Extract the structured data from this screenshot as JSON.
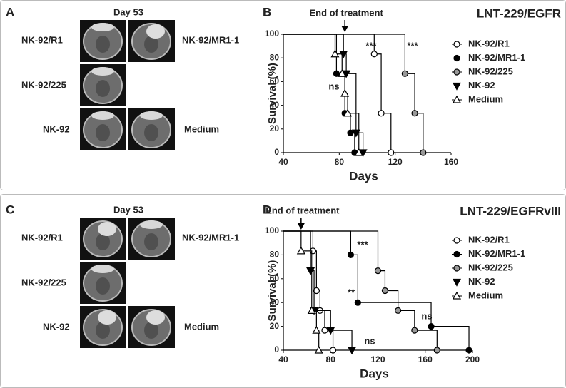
{
  "panels": [
    {
      "label": "A",
      "day": "Day 53",
      "names": [
        "NK-92/R1",
        "NK-92/MR1-1",
        "NK-92/225",
        "NK-92",
        "Medium"
      ]
    },
    {
      "label": "C",
      "day": "Day 53",
      "names": [
        "NK-92/R1",
        "NK-92/MR1-1",
        "NK-92/225",
        "NK-92",
        "Medium"
      ]
    }
  ],
  "chart_data": [
    {
      "type": "line",
      "label": "B",
      "title": "LNT-229/EGFR",
      "annotation": "End of treatment",
      "annotation_x": 84,
      "x_label": "Days",
      "y_label": "Survival  (%)",
      "xlim": [
        40,
        160
      ],
      "xticks": [
        40,
        80,
        120,
        160
      ],
      "ylim": [
        0,
        100
      ],
      "yticks": [
        0,
        20,
        40,
        60,
        80,
        100
      ],
      "marks": [
        "***",
        "***",
        "ns"
      ],
      "series": [
        {
          "name": "NK-92/R1",
          "color": "#ffffff",
          "marker": "circle",
          "x": [
            105,
            110,
            117
          ],
          "values": [
            83.3,
            33.3,
            0
          ]
        },
        {
          "name": "NK-92/MR1-1",
          "color": "#000000",
          "marker": "circle",
          "x": [
            78,
            84,
            88,
            91
          ],
          "values": [
            66.7,
            33.3,
            16.7,
            0
          ]
        },
        {
          "name": "NK-92/225",
          "color": "#999999",
          "marker": "circle",
          "x": [
            127,
            134,
            140
          ],
          "values": [
            66.7,
            33.3,
            0
          ]
        },
        {
          "name": "NK-92",
          "color": "#000000",
          "marker": "triangle-down",
          "x": [
            83,
            85,
            92,
            97
          ],
          "values": [
            83.3,
            66.7,
            16.7,
            0
          ]
        },
        {
          "name": "Medium",
          "color": "#ffffff",
          "marker": "triangle-up",
          "x": [
            77,
            82,
            84,
            86,
            94
          ],
          "values": [
            83.3,
            66.7,
            50,
            33.3,
            0
          ]
        }
      ]
    },
    {
      "type": "line",
      "label": "D",
      "title": "LNT-229/EGFRvIII",
      "annotation": "End of treatment",
      "annotation_x": 55,
      "x_label": "Days",
      "y_label": "Survival  (%)",
      "xlim": [
        40,
        200
      ],
      "xticks": [
        40,
        80,
        120,
        160,
        200
      ],
      "ylim": [
        0,
        100
      ],
      "yticks": [
        0,
        20,
        40,
        60,
        80,
        100
      ],
      "marks": [
        "***",
        "**",
        "ns",
        "ns"
      ],
      "series": [
        {
          "name": "NK-92/R1",
          "color": "#ffffff",
          "marker": "circle",
          "x": [
            65,
            68,
            71,
            75,
            82
          ],
          "values": [
            83.3,
            50,
            33.3,
            16.7,
            0
          ]
        },
        {
          "name": "NK-92/MR1-1",
          "color": "#000000",
          "marker": "circle",
          "x": [
            97,
            103,
            165,
            197
          ],
          "values": [
            80,
            40,
            20,
            0
          ]
        },
        {
          "name": "NK-92/225",
          "color": "#999999",
          "marker": "circle",
          "x": [
            120,
            126,
            137,
            151,
            170
          ],
          "values": [
            66.7,
            50,
            33.3,
            16.7,
            0
          ]
        },
        {
          "name": "NK-92",
          "color": "#000000",
          "marker": "triangle-down",
          "x": [
            63,
            66,
            80,
            98
          ],
          "values": [
            66.7,
            33.3,
            16.7,
            0
          ]
        },
        {
          "name": "Medium",
          "color": "#ffffff",
          "marker": "triangle-up",
          "x": [
            55,
            64,
            68,
            70
          ],
          "values": [
            83.3,
            33.3,
            16.7,
            0
          ]
        }
      ]
    }
  ]
}
